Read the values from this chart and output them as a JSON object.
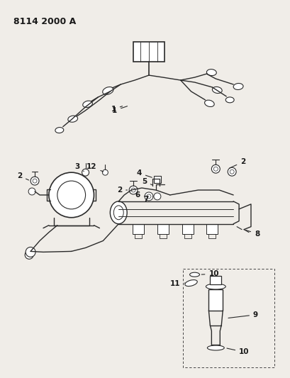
{
  "title": "8114 2000 A",
  "bg_color": "#f0ede8",
  "line_color": "#2a2a2a",
  "label_color": "#1a1a1a",
  "title_fontsize": 9,
  "label_fontsize": 7.5
}
